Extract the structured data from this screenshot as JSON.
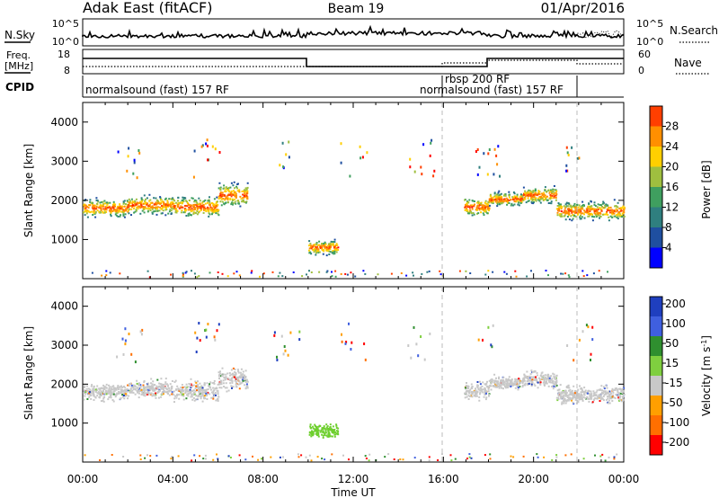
{
  "header": {
    "station": "Adak East (fitACF)",
    "beam": "Beam 19",
    "date": "01/Apr/2016"
  },
  "summary_panels": {
    "nsky_label": "N.Sky",
    "nsearch_label": "N.Search",
    "noise_ticks_left": [
      "10^5",
      "10^0"
    ],
    "noise_ticks_right": [
      "10^5",
      "10^0"
    ],
    "freq_label_top": "Freq.",
    "freq_label_unit": "[MHz]",
    "freq_ticks": [
      "18",
      "8"
    ],
    "nave_label": "Nave",
    "nave_ticks": [
      "60",
      "0"
    ],
    "cpid_label": "CPID",
    "cpid_segments": [
      {
        "start_hour": 0,
        "end_hour": 16,
        "label": "normalsound (fast) 157 RF"
      },
      {
        "start_hour": 16,
        "end_hour": 22,
        "label": "rbsp 200 RF"
      },
      {
        "start_hour": 16,
        "end_hour": 22,
        "label": "normalsound (fast) 157 RF"
      }
    ]
  },
  "colors": {
    "power": [
      "#0000ff",
      "#1f4fa0",
      "#2f7f7f",
      "#3f9f5f",
      "#9fbf3f",
      "#ffcf00",
      "#ff8f00",
      "#ff3f00",
      "#ff0000"
    ],
    "velocity": [
      "#1f3fbf",
      "#3f5fdf",
      "#2f8f2f",
      "#7fcf3f",
      "#c8c8c8",
      "#c8c8c8",
      "#ff9f00",
      "#ff6f00",
      "#ff0000"
    ]
  },
  "chart_data": [
    {
      "type": "heatmap",
      "name": "power",
      "ylabel": "Slant Range [km]",
      "xlabel": "Time UT",
      "x_range_hours": [
        0,
        24
      ],
      "ylim": [
        0,
        4500
      ],
      "y_ticks": [
        1000,
        2000,
        3000,
        4000
      ],
      "x_tick_labels": [
        "00:00",
        "04:00",
        "08:00",
        "12:00",
        "16:00",
        "20:00",
        "00:00"
      ],
      "colorbar": {
        "label": "Power [dB]",
        "ticks": [
          4,
          8,
          12,
          16,
          20,
          24,
          28
        ],
        "range": [
          0,
          32
        ]
      },
      "echo_bands": [
        {
          "start_hour": 0.0,
          "end_hour": 2.0,
          "center_km": 1820,
          "width_km": 380
        },
        {
          "start_hour": 2.0,
          "end_hour": 4.0,
          "center_km": 1900,
          "width_km": 380
        },
        {
          "start_hour": 4.0,
          "end_hour": 6.0,
          "center_km": 1850,
          "width_km": 420
        },
        {
          "start_hour": 6.0,
          "end_hour": 7.3,
          "center_km": 2150,
          "width_km": 480
        },
        {
          "start_hour": 10.0,
          "end_hour": 11.3,
          "center_km": 820,
          "width_km": 300
        },
        {
          "start_hour": 16.9,
          "end_hour": 18.0,
          "center_km": 1850,
          "width_km": 400
        },
        {
          "start_hour": 18.0,
          "end_hour": 19.5,
          "center_km": 2050,
          "width_km": 280
        },
        {
          "start_hour": 19.5,
          "end_hour": 21.0,
          "center_km": 2150,
          "width_km": 350
        },
        {
          "start_hour": 21.0,
          "end_hour": 24.0,
          "center_km": 1750,
          "width_km": 380
        }
      ]
    },
    {
      "type": "heatmap",
      "name": "velocity",
      "ylabel": "Slant Range [km]",
      "xlabel": "Time UT",
      "x_range_hours": [
        0,
        24
      ],
      "ylim": [
        0,
        4500
      ],
      "y_ticks": [
        1000,
        2000,
        3000,
        4000
      ],
      "x_tick_labels": [
        "00:00",
        "04:00",
        "08:00",
        "12:00",
        "16:00",
        "20:00",
        "00:00"
      ],
      "colorbar": {
        "label": "Velocity [m s^-1]",
        "ticks": [
          "200",
          "100",
          "50",
          "15",
          "-15",
          "-50",
          "-100",
          "-200"
        ]
      },
      "echo_bands": [
        {
          "start_hour": 0.0,
          "end_hour": 2.0,
          "center_km": 1820,
          "width_km": 380
        },
        {
          "start_hour": 2.0,
          "end_hour": 4.0,
          "center_km": 1900,
          "width_km": 380
        },
        {
          "start_hour": 4.0,
          "end_hour": 6.0,
          "center_km": 1850,
          "width_km": 420
        },
        {
          "start_hour": 6.0,
          "end_hour": 7.3,
          "center_km": 2150,
          "width_km": 480
        },
        {
          "start_hour": 10.0,
          "end_hour": 11.3,
          "center_km": 820,
          "width_km": 300
        },
        {
          "start_hour": 16.9,
          "end_hour": 18.0,
          "center_km": 1850,
          "width_km": 400
        },
        {
          "start_hour": 18.0,
          "end_hour": 19.5,
          "center_km": 2050,
          "width_km": 280
        },
        {
          "start_hour": 19.5,
          "end_hour": 21.0,
          "center_km": 2150,
          "width_km": 350
        },
        {
          "start_hour": 21.0,
          "end_hour": 24.0,
          "center_km": 1750,
          "width_km": 380
        }
      ]
    }
  ]
}
